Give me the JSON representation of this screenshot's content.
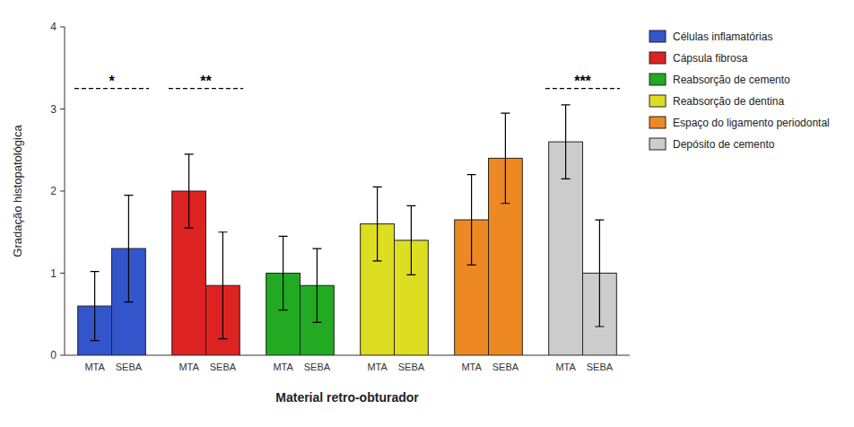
{
  "chart_data": {
    "type": "bar",
    "xlabel": "Material retro-obturador",
    "ylabel": "Gradação histopatológica",
    "categories": [
      "MTA",
      "SEBA"
    ],
    "series": [
      {
        "name": "Células inflamatórias",
        "color": "#3355cc",
        "values": [
          0.6,
          1.3
        ],
        "errors": [
          0.42,
          0.65
        ]
      },
      {
        "name": "Cápsula fibrosa",
        "color": "#dd2222",
        "values": [
          2.0,
          0.85
        ],
        "errors": [
          0.45,
          0.65
        ]
      },
      {
        "name": "Reabsorção de cemento",
        "color": "#22aa22",
        "values": [
          1.0,
          0.85
        ],
        "errors": [
          0.45,
          0.45
        ]
      },
      {
        "name": "Reabsorção de dentina",
        "color": "#dddd22",
        "values": [
          1.6,
          1.4
        ],
        "errors": [
          0.45,
          0.42
        ]
      },
      {
        "name": "Espaço do ligamento periodontal",
        "color": "#ee8822",
        "values": [
          1.65,
          2.4
        ],
        "errors": [
          0.55,
          0.55
        ]
      },
      {
        "name": "Depósito de cemento",
        "color": "#cccccc",
        "values": [
          2.6,
          1.0
        ],
        "errors": [
          0.45,
          0.65
        ]
      }
    ],
    "annotations": [
      {
        "text": "*",
        "series": 0,
        "y": 3.25
      },
      {
        "text": "**",
        "series": 1,
        "y": 3.25
      },
      {
        "text": "***",
        "series": 5,
        "y": 3.25
      }
    ],
    "ylim": [
      0,
      4
    ],
    "yticks": [
      0,
      1,
      2,
      3,
      4
    ],
    "grid": false,
    "legend": "right"
  }
}
